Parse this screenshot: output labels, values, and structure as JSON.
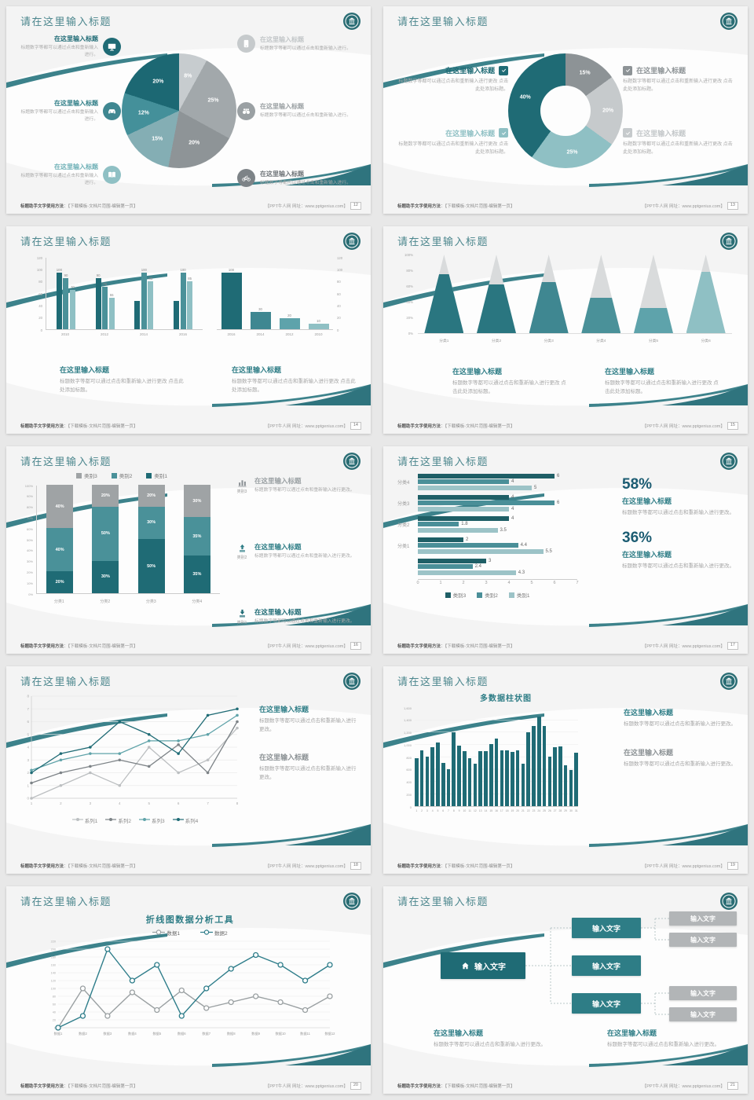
{
  "footer": {
    "left_bold": "标题助手文字使用方法",
    "left_rest": "：【下载模板-文档片范围-编辑第一页】",
    "right": "【PPT牛人网 网址：www.pptgenius.com】"
  },
  "slides": [
    {
      "page": "12",
      "title": "请在这里输入标题",
      "type": "pie-features",
      "chart_data": {
        "type": "pie",
        "values": [
          8,
          25,
          20,
          15,
          12,
          20
        ],
        "labels": [
          "8%",
          "25%",
          "20%",
          "15%",
          "12%",
          "20%"
        ],
        "colors": [
          "#c7cccf",
          "#a2a8ab",
          "#8e9497",
          "#84aeb4",
          "#44909a",
          "#1c6873"
        ]
      },
      "left_blocks": [
        {
          "title": "在这里输入标题",
          "body": "标题数字等都可以通过点击和重新输入进行。",
          "icon": "monitor",
          "color": "#1f6b75",
          "title_color": "#1f6b75"
        },
        {
          "title": "在这里输入标题",
          "body": "标题数字等都可以通过点击和重新输入进行。",
          "icon": "car",
          "color": "#3f8791",
          "title_color": "#2e7d86"
        },
        {
          "title": "在这里输入标题",
          "body": "标题数字等都可以通过点击和重新输入进行。",
          "icon": "book",
          "color": "#8fc0c4",
          "title_color": "#6fb1b7"
        }
      ],
      "right_blocks": [
        {
          "title": "在这里输入标题",
          "body": "标题数字等都可以通过点击和重新输入进行。",
          "icon": "phone",
          "color": "#c6cacc",
          "title_color": "#c2c6c8"
        },
        {
          "title": "在这里输入标题",
          "body": "标题数字等都可以通过点击和重新输入进行。",
          "icon": "binoculars",
          "color": "#9aa0a3",
          "title_color": "#9aa0a3"
        },
        {
          "title": "在这里输入标题",
          "body": "标题数字等都可以通过点击和重新输入进行。",
          "icon": "bicycle",
          "color": "#7d8387",
          "title_color": "#6d7377"
        }
      ]
    },
    {
      "page": "13",
      "title": "请在这里输入标题",
      "type": "donut-checks",
      "chart_data": {
        "type": "pie",
        "donut": true,
        "values": [
          15,
          20,
          25,
          40
        ],
        "labels": [
          "15%",
          "20%",
          "25%",
          "40%"
        ],
        "colors": [
          "#8d9396",
          "#c6cacc",
          "#8fc0c4",
          "#1f6b75"
        ]
      },
      "left_blocks": [
        {
          "title": "在这里输入标题",
          "body": "标题数字等都可以通过点击和重新输入进行更改 点击此处添加标题。",
          "check": "#1f6b75",
          "title_color": "#1f6b75"
        },
        {
          "title": "在这里输入标题",
          "body": "标题数字等都可以通过点击和重新输入进行更改 点击此处添加标题。",
          "check": "#8fc0c4",
          "title_color": "#8fc0c4"
        }
      ],
      "right_blocks": [
        {
          "title": "在这里输入标题",
          "body": "标题数字等都可以通过点击和重新输入进行更改 点击此处添加标题。",
          "check": "#8d9396",
          "title_color": "#8d9396"
        },
        {
          "title": "在这里输入标题",
          "body": "标题数字等都可以通过点击和重新输入进行更改 点击此处添加标题。",
          "check": "#c6cacc",
          "title_color": "#c3c7c9"
        }
      ]
    },
    {
      "page": "14",
      "title": "请在这里输入标题",
      "type": "two-bars",
      "chart_data": [
        {
          "type": "bar",
          "categories": [
            "2010",
            "2012",
            "2014",
            "2016"
          ],
          "series_colors": [
            "#1f6b75",
            "#4a9199",
            "#8fc0c4"
          ],
          "values": [
            [
              100,
              90,
              70
            ],
            [
              90,
              75,
              55
            ],
            [
              50,
              100,
              85
            ],
            [
              50,
              100,
              85
            ]
          ],
          "bar_labels": [
            [
              "100",
              "90",
              "70"
            ],
            [
              "90",
              "75",
              "55"
            ],
            [
              "",
              "100",
              "85"
            ],
            [
              "",
              "100",
              "85"
            ]
          ],
          "yticks": [
            "120",
            "100",
            "80",
            "60",
            "40",
            "20",
            "0"
          ]
        },
        {
          "type": "bar",
          "categories": [
            "2016",
            "2014",
            "2012",
            "2010"
          ],
          "colors": [
            "#1f6b75",
            "#3f8791",
            "#5ea3ab",
            "#8fc0c4"
          ],
          "values": [
            100,
            30,
            20,
            10
          ],
          "bar_labels": [
            "100",
            "30",
            "20",
            "10"
          ],
          "yticks": [
            "120",
            "100",
            "80",
            "60",
            "40",
            "20",
            "0"
          ]
        }
      ],
      "sections": [
        {
          "title": "在这里输入标题",
          "title_color": "#2e7d86",
          "body": "标题数字等都可以通过点击和重新输入进行更改 点击此处添加标题。"
        },
        {
          "title": "在这里输入标题",
          "title_color": "#2e7d86",
          "body": "标题数字等都可以通过点击和重新输入进行更改 点击此处添加标题。"
        }
      ]
    },
    {
      "page": "15",
      "title": "请在这里输入标题",
      "type": "pyramids",
      "chart_data": {
        "type": "bar",
        "subtype": "pyramid",
        "categories": [
          "分类1",
          "分类2",
          "分类3",
          "分类4",
          "分类5",
          "分类6"
        ],
        "fill_pct": [
          75,
          62,
          65,
          45,
          32,
          78
        ],
        "fill_colors": [
          "#2a7680",
          "#2a7680",
          "#3f8791",
          "#4a9199",
          "#5ea3ab",
          "#8fc0c4"
        ],
        "top_color": "#d9dbdc",
        "yticks": [
          "100%",
          "80%",
          "60%",
          "40%",
          "20%",
          "0%"
        ]
      },
      "sections": [
        {
          "title": "在这里输入标题",
          "title_color": "#2e7d86",
          "body": "标题数字等都可以通过点击和重新输入进行更改 点击此处添加标题。"
        },
        {
          "title": "在这里输入标题",
          "title_color": "#2e7d86",
          "body": "标题数字等都可以通过点击和重新输入进行更改 点击此处添加标题。"
        }
      ]
    },
    {
      "page": "16",
      "title": "请在这里输入标题",
      "type": "stacked",
      "chart_data": {
        "type": "bar",
        "subtype": "stacked-100",
        "categories": [
          "分类1",
          "分类2",
          "分类3",
          "分类4"
        ],
        "legend": [
          "类别3",
          "类别2",
          "类别1"
        ],
        "legend_colors": [
          "#9fa3a5",
          "#4a9199",
          "#1f6b75"
        ],
        "seg_colors": [
          "#1f6b75",
          "#4a9199",
          "#9fa3a5"
        ],
        "values": [
          [
            20,
            40,
            40
          ],
          [
            30,
            50,
            20
          ],
          [
            50,
            30,
            20
          ],
          [
            35,
            35,
            30
          ]
        ],
        "yticks": [
          "100%",
          "90%",
          "80%",
          "70%",
          "60%",
          "50%",
          "40%",
          "30%",
          "20%",
          "10%",
          "0%"
        ]
      },
      "items": [
        {
          "icon": "chart",
          "icon_color": "#8a9094",
          "tag": "类别3",
          "title": "在这里输入标题",
          "title_color": "#9aa0a3",
          "body": "标题数字等都可以通过点击和重新输入进行更改。"
        },
        {
          "icon": "up",
          "icon_color": "#2e7d86",
          "tag": "类别2",
          "title": "在这里输入标题",
          "title_color": "#2e7d86",
          "body": "标题数字等都可以通过点击和重新输入进行更改。"
        },
        {
          "icon": "down",
          "icon_color": "#1f6b75",
          "tag": "类别1",
          "title": "在这里输入标题",
          "title_color": "#1f6b75",
          "body": "标题数字等都可以通过点击和重新输入进行更改。"
        }
      ]
    },
    {
      "page": "17",
      "title": "请在这里输入标题",
      "type": "h-bars",
      "value_color": "#1b5c72",
      "title_color": "#2e7d86",
      "chart_data": {
        "type": "bar",
        "subtype": "horizontal",
        "group_labels": [
          "分类4",
          "分类3",
          "分类2",
          "分类1",
          ""
        ],
        "series_colors": [
          "#1f5f66",
          "#4a8f98",
          "#9cc3c7"
        ],
        "values": [
          [
            6,
            4,
            5
          ],
          [
            4,
            6,
            4
          ],
          [
            4,
            1.8,
            3.5
          ],
          [
            2,
            4.4,
            5.5
          ],
          [
            3,
            2.4,
            4.3
          ]
        ],
        "xticks": [
          "0",
          "1",
          "2",
          "3",
          "4",
          "5",
          "6",
          "7"
        ],
        "legend": [
          "类别3",
          "类别2",
          "类别1"
        ]
      },
      "stats": [
        {
          "value": "58%",
          "title": "在这里输入标题",
          "body": "标题数字等都可以通过点击和重新输入进行更改。"
        },
        {
          "value": "36%",
          "title": "在这里输入标题",
          "body": "标题数字等都可以通过点击和重新输入进行更改。"
        }
      ]
    },
    {
      "page": "18",
      "title": "请在这里输入标题",
      "type": "lines",
      "chart_data": {
        "type": "line",
        "x": [
          "1",
          "2",
          "3",
          "4",
          "5",
          "6",
          "7",
          "8"
        ],
        "ymax": 8,
        "series": [
          {
            "name": "系列1",
            "color": "#bcbfc1",
            "values": [
              0,
              1,
              2,
              1,
              4,
              2,
              3,
              5.5
            ]
          },
          {
            "name": "系列2",
            "color": "#7d8387",
            "values": [
              1.2,
              2,
              2.5,
              3,
              2.5,
              4.2,
              2,
              6
            ]
          },
          {
            "name": "系列3",
            "color": "#5fa3a9",
            "values": [
              2.2,
              3,
              3.5,
              3.5,
              4.5,
              4.5,
              5,
              6.5
            ]
          },
          {
            "name": "系列4",
            "color": "#1f6b75",
            "values": [
              2,
              3.5,
              4,
              6,
              5,
              3.5,
              6.5,
              7
            ]
          }
        ]
      },
      "blocks": [
        {
          "title": "在这里输入标题",
          "title_color": "#2e7d86",
          "body": "标题数字等都可以通过点击和重新输入进行更改。"
        },
        {
          "title": "在这里输入标题",
          "title_color": "#8b9194",
          "body": "标题数字等都可以通过点击和重新输入进行更改。"
        }
      ]
    },
    {
      "page": "19",
      "title": "请在这里输入标题",
      "type": "columns",
      "chart_data": {
        "type": "bar",
        "title": "多数据柱状图",
        "color": "#1f6b75",
        "ymax": 1600,
        "yticks": [
          "1,600",
          "1,400",
          "1,200",
          "1,000",
          "800",
          "600",
          "400",
          "200",
          "0"
        ],
        "xticks": [
          "1",
          "2",
          "3",
          "4",
          "5",
          "6",
          "7",
          "8",
          "9",
          "10",
          "11",
          "12",
          "13",
          "14",
          "15",
          "16",
          "17",
          "18",
          "19",
          "20",
          "21",
          "22",
          "23",
          "24",
          "25",
          "26",
          "27",
          "28",
          "29",
          "30",
          "31"
        ],
        "values": [
          780,
          900,
          800,
          950,
          1030,
          700,
          600,
          1200,
          980,
          890,
          770,
          690,
          890,
          890,
          1000,
          1090,
          900,
          900,
          880,
          900,
          690,
          1190,
          1300,
          1450,
          1300,
          800,
          950,
          960,
          660,
          590,
          870
        ]
      },
      "blocks": [
        {
          "title": "在这里输入标题",
          "title_color": "#2e7d86",
          "body": "标题数字等都可以通过点击和重新输入进行更改。"
        },
        {
          "title": "在这里输入标题",
          "title_color": "#8b9194",
          "body": "标题数字等都可以通过点击和重新输入进行更改。"
        }
      ]
    },
    {
      "page": "20",
      "title": "请在这里输入标题",
      "type": "lines2",
      "chart_data": {
        "type": "line",
        "title": "折线图数据分析工具",
        "ymax": 220,
        "yticks": [
          "220",
          "200",
          "180",
          "160",
          "140",
          "120",
          "100",
          "80",
          "60",
          "40",
          "20",
          "0"
        ],
        "categories": [
          "数据1",
          "数据2",
          "数据3",
          "数据4",
          "数据5",
          "数据6",
          "数据7",
          "数据8",
          "数据9",
          "数据10",
          "数据11",
          "数据12"
        ],
        "series": [
          {
            "name": "数据1",
            "color": "#9aa0a2",
            "values": [
              0,
              100,
              30,
              90,
              45,
              95,
              50,
              65,
              80,
              65,
              45,
              80
            ]
          },
          {
            "name": "数据2",
            "color": "#2e7d8a",
            "values": [
              0,
              30,
              200,
              120,
              160,
              30,
              100,
              150,
              185,
              160,
              120,
              160
            ]
          }
        ]
      }
    },
    {
      "page": "21",
      "title": "请在这里输入标题",
      "type": "tree",
      "tree": {
        "root": {
          "label": "输入文字",
          "color": "#1f6b75"
        },
        "mid_color": "#2e7d86",
        "mids": [
          {
            "label": "输入文字"
          },
          {
            "label": "输入文字"
          },
          {
            "label": "输入文字"
          }
        ],
        "leaf_color": "#b2b5b7",
        "leaves": [
          "输入文字",
          "输入文字",
          "输入文字",
          "输入文字"
        ]
      },
      "blocks": [
        {
          "title": "在这里输入标题",
          "title_color": "#2e7d86",
          "body": "标题数字等都可以通过点击和重新输入进行更改。"
        },
        {
          "title": "在这里输入标题",
          "title_color": "#2e7d86",
          "body": "标题数字等都可以通过点击和重新输入进行更改。"
        }
      ]
    }
  ]
}
